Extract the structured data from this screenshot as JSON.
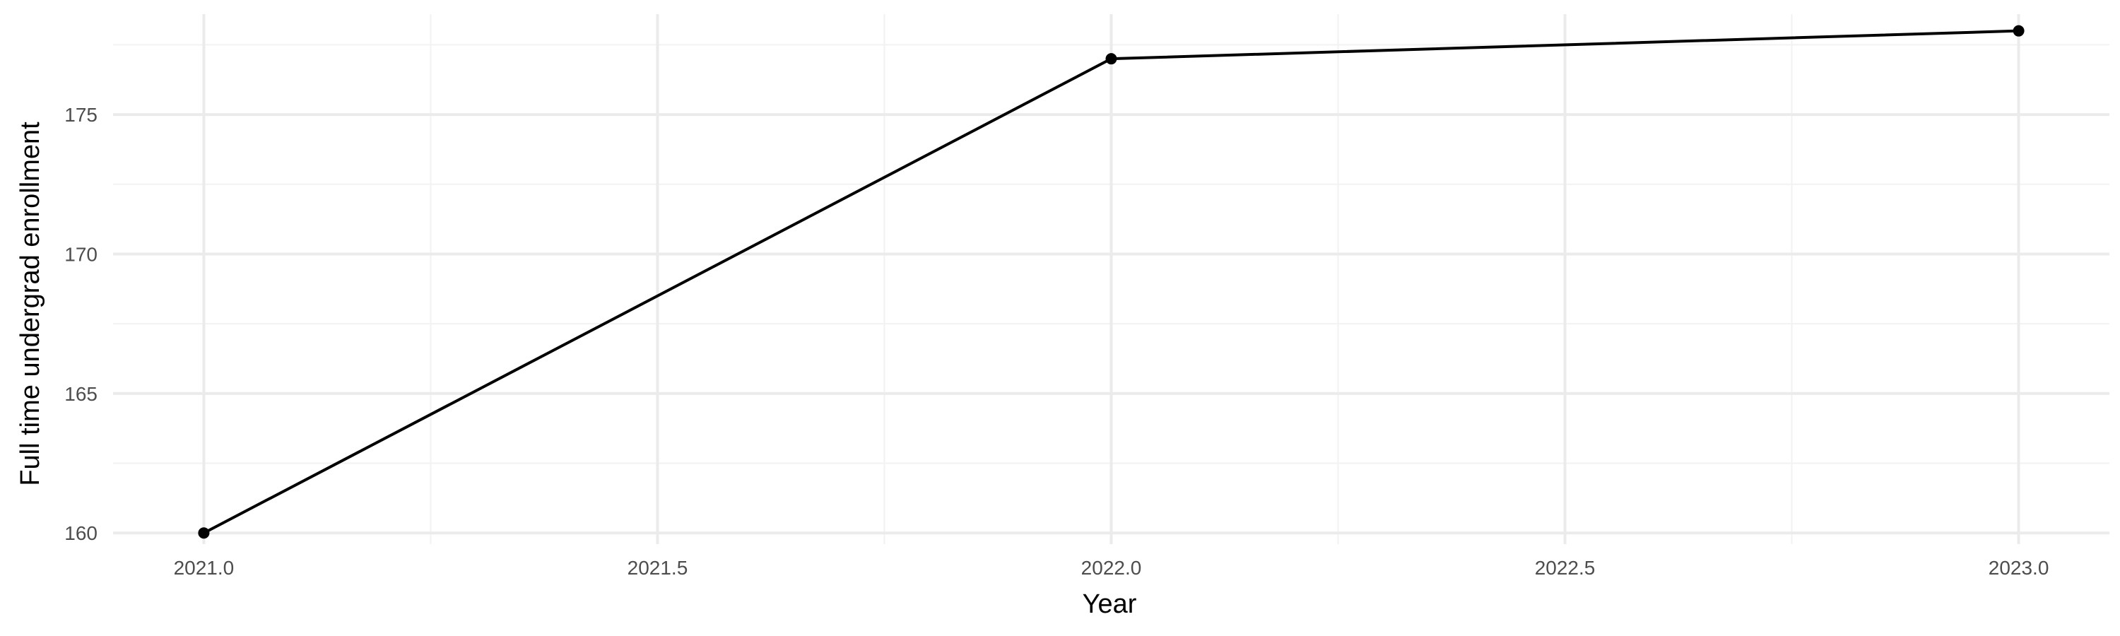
{
  "chart_data": {
    "type": "line",
    "title": "",
    "xlabel": "Year",
    "ylabel": "Full time undergrad enrollment",
    "xlim": [
      2020.9,
      2023.1
    ],
    "ylim": [
      159.6,
      178.6
    ],
    "x_ticks": [
      2021.0,
      2021.5,
      2022.0,
      2022.5,
      2023.0
    ],
    "x_tick_labels": [
      "2021.0",
      "2021.5",
      "2022.0",
      "2022.5",
      "2023.0"
    ],
    "x_minor": [
      2021.25,
      2021.75,
      2022.25,
      2022.75
    ],
    "y_ticks": [
      160,
      165,
      170,
      175
    ],
    "y_tick_labels": [
      "160",
      "165",
      "170",
      "175"
    ],
    "y_minor": [
      162.5,
      167.5,
      172.5,
      177.5
    ],
    "grid": true,
    "series": [
      {
        "x": [
          2021,
          2022,
          2023
        ],
        "y": [
          160,
          177,
          178
        ]
      }
    ]
  }
}
